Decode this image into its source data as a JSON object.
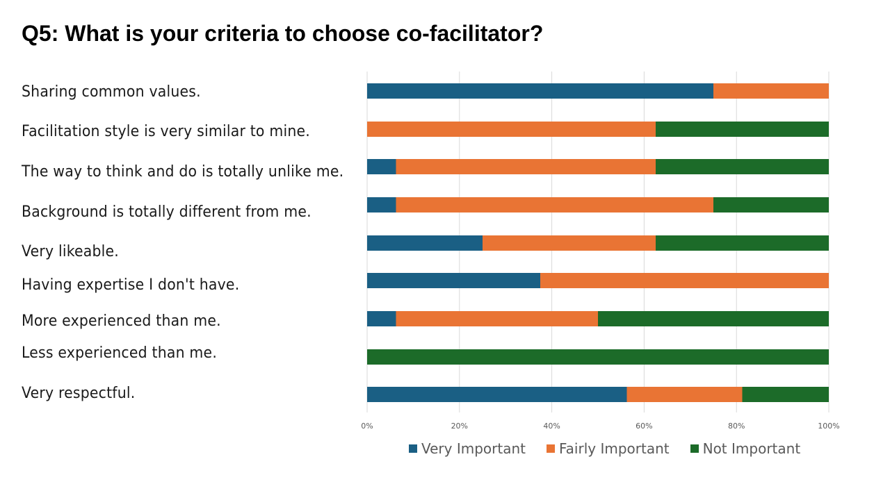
{
  "chart_data": {
    "type": "bar",
    "orientation": "horizontal",
    "stacked": "percent",
    "title": "Q5: What is your criteria to choose co-facilitator?",
    "categories": [
      "Sharing common values.",
      "Facilitation style is very similar to mine.",
      "The way to think and do is totally unlike me.",
      "Background is totally different from me.",
      "Very likeable.",
      "Having expertise I don't have.",
      "More experienced than me.",
      "Less experienced than me.",
      "Very respectful."
    ],
    "series": [
      {
        "name": "Very Important",
        "color": "#1a5f84",
        "values": [
          75,
          0,
          6.25,
          6.25,
          25,
          37.5,
          6.25,
          0,
          56.25
        ]
      },
      {
        "name": "Fairly Important",
        "color": "#e97434",
        "values": [
          25,
          62.5,
          56.25,
          68.75,
          37.5,
          62.5,
          43.75,
          0,
          25
        ]
      },
      {
        "name": "Not Important",
        "color": "#1c6b29",
        "values": [
          0,
          37.5,
          37.5,
          25,
          37.5,
          0,
          50,
          100,
          18.75
        ]
      }
    ],
    "xlim": [
      0,
      100
    ],
    "xticks": [
      "0%",
      "20%",
      "40%",
      "60%",
      "80%",
      "100%"
    ],
    "xlabel": "",
    "ylabel": "",
    "grid": true,
    "legend_position": "bottom"
  }
}
